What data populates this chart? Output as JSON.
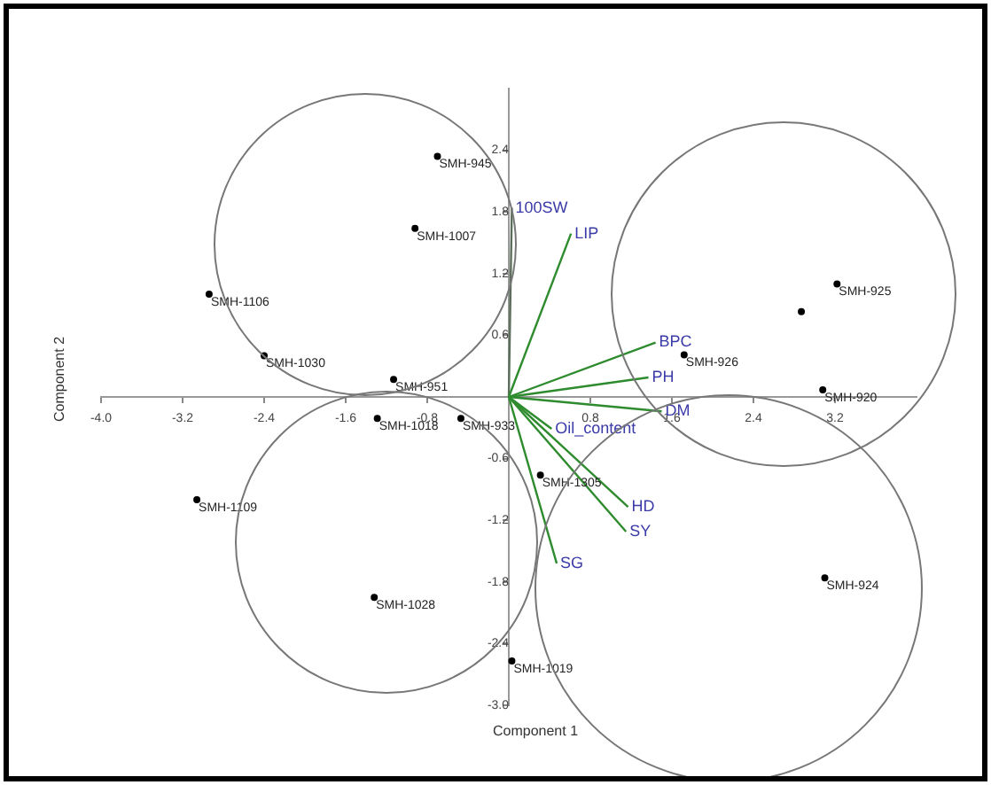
{
  "chart_data": {
    "type": "scatter",
    "xlabel": "Component 1",
    "ylabel": "Component 2",
    "xlim": [
      -4.0,
      4.0
    ],
    "ylim": [
      -3.0,
      3.0
    ],
    "xticks": [
      {
        "value": -4.0,
        "label": "-4.0"
      },
      -3.2,
      -2.4,
      -1.6,
      -0.8,
      0.8,
      1.6,
      2.4,
      3.2
    ],
    "yticks": [
      2.4,
      1.8,
      1.2,
      0.6,
      -0.6,
      -1.2,
      -1.8,
      -2.4,
      {
        "value": -3.0,
        "label": "-3.0"
      }
    ],
    "grid": false,
    "legend": false,
    "series": [
      {
        "type": "scatter",
        "color": "#000000",
        "marker": "circle",
        "x": [
          -0.7,
          -0.92,
          -2.94,
          -2.4,
          -1.13,
          -1.29,
          -0.47,
          -3.06,
          -1.32,
          0.03,
          0.31,
          3.1,
          3.08,
          3.22,
          2.87,
          1.72
        ],
        "values": [
          2.34,
          1.64,
          1.0,
          0.4,
          0.17,
          -0.21,
          -0.21,
          -1.0,
          -1.95,
          -2.57,
          -0.76,
          -1.76,
          0.07,
          1.1,
          0.83,
          0.41
        ]
      },
      {
        "name": "LIP",
        "type": "line",
        "color": "#2e8b2e",
        "x": [
          0,
          0.61
        ],
        "values": [
          0,
          1.59
        ]
      },
      {
        "name": "100SW",
        "type": "line",
        "color": "#5a6e5a",
        "x": [
          0,
          0.03
        ],
        "values": [
          0,
          1.84
        ]
      },
      {
        "name": "BPC",
        "type": "line",
        "color": "#2e8b2e",
        "x": [
          0,
          1.44
        ],
        "values": [
          0,
          0.53
        ]
      },
      {
        "name": "PH",
        "type": "line",
        "color": "#2e8b2e",
        "x": [
          0,
          1.37
        ],
        "values": [
          0,
          0.19
        ]
      },
      {
        "name": "DM",
        "type": "line",
        "color": "#2e8b2e",
        "x": [
          0,
          1.5
        ],
        "values": [
          0,
          -0.14
        ]
      },
      {
        "name": "Oil_content",
        "type": "line",
        "color": "#2e8b2e",
        "x": [
          0,
          0.42
        ],
        "values": [
          0,
          -0.31
        ]
      },
      {
        "name": "HD",
        "type": "line",
        "color": "#2e8b2e",
        "x": [
          0,
          1.17
        ],
        "values": [
          0,
          -1.07
        ]
      },
      {
        "name": "SY",
        "type": "line",
        "color": "#2e8b2e",
        "x": [
          0,
          1.15
        ],
        "values": [
          0,
          -1.31
        ]
      },
      {
        "name": "SG",
        "type": "line",
        "color": "#2e8b2e",
        "x": [
          0,
          0.47
        ],
        "values": [
          0,
          -1.62
        ]
      }
    ],
    "annotations": [
      {
        "text": "SMH-945",
        "x": -0.7,
        "y": 2.34
      },
      {
        "text": "SMH-1007",
        "x": -0.92,
        "y": 1.64
      },
      {
        "text": "SMH-1106",
        "x": -2.94,
        "y": 1.0
      },
      {
        "text": "SMH-1030",
        "x": -2.4,
        "y": 0.4
      },
      {
        "text": "SMH-951",
        "x": -1.13,
        "y": 0.17
      },
      {
        "text": "SMH-1018",
        "x": -1.29,
        "y": -0.21
      },
      {
        "text": "SMH-933",
        "x": -0.47,
        "y": -0.21
      },
      {
        "text": "SMH-1109",
        "x": -3.06,
        "y": -1.0
      },
      {
        "text": "SMH-1028",
        "x": -1.32,
        "y": -1.95
      },
      {
        "text": "SMH-1019",
        "x": 0.03,
        "y": -2.57
      },
      {
        "text": "SMH-1305",
        "x": 0.31,
        "y": -0.76
      },
      {
        "text": "SMH-924",
        "x": 3.1,
        "y": -1.76
      },
      {
        "text": "SMH-920",
        "x": 3.08,
        "y": 0.07
      },
      {
        "text": "SMH-925",
        "x": 3.22,
        "y": 1.1
      },
      {
        "text": "SMH-926",
        "x": 1.72,
        "y": 0.41
      }
    ]
  }
}
